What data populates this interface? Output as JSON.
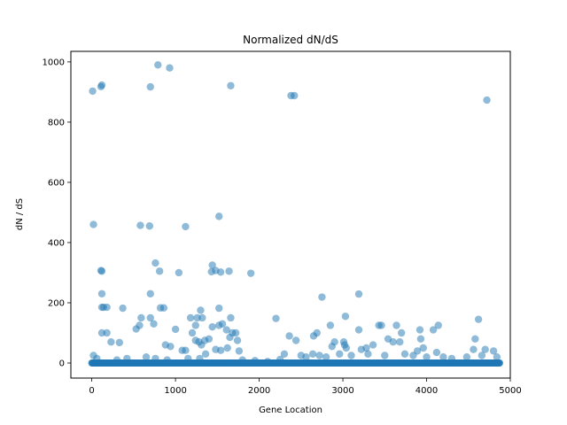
{
  "chart_data": {
    "type": "scatter",
    "title": "Normalized dN/dS",
    "xlabel": "Gene Location",
    "ylabel": "dN / dS",
    "xlim": [
      -250,
      5000
    ],
    "ylim": [
      -50,
      1035
    ],
    "xticks": [
      0,
      1000,
      2000,
      3000,
      4000,
      5000
    ],
    "yticks": [
      0,
      200,
      400,
      600,
      800,
      1000
    ],
    "grid": false,
    "marker_color": "#1f77b4",
    "marker_alpha": 0.5,
    "baseline": {
      "x_start": 0,
      "x_end": 4880,
      "y": 0,
      "note_points_at": 0
    },
    "points": [
      [
        10,
        903
      ],
      [
        20,
        460
      ],
      [
        110,
        918
      ],
      [
        120,
        923
      ],
      [
        700,
        917
      ],
      [
        790,
        990
      ],
      [
        930,
        980
      ],
      [
        1660,
        921
      ],
      [
        2380,
        888
      ],
      [
        2420,
        888
      ],
      [
        4720,
        873
      ],
      [
        580,
        457
      ],
      [
        690,
        455
      ],
      [
        1120,
        453
      ],
      [
        1520,
        487
      ],
      [
        110,
        307
      ],
      [
        120,
        305
      ],
      [
        760,
        332
      ],
      [
        810,
        305
      ],
      [
        1040,
        300
      ],
      [
        1430,
        303
      ],
      [
        1440,
        325
      ],
      [
        1480,
        307
      ],
      [
        1540,
        302
      ],
      [
        1640,
        305
      ],
      [
        1900,
        298
      ],
      [
        120,
        230
      ],
      [
        700,
        230
      ],
      [
        2750,
        219
      ],
      [
        3190,
        229
      ],
      [
        120,
        185
      ],
      [
        140,
        185
      ],
      [
        180,
        185
      ],
      [
        370,
        182
      ],
      [
        820,
        183
      ],
      [
        860,
        183
      ],
      [
        1520,
        182
      ],
      [
        530,
        113
      ],
      [
        570,
        125
      ],
      [
        590,
        150
      ],
      [
        700,
        150
      ],
      [
        740,
        130
      ],
      [
        1000,
        112
      ],
      [
        1180,
        150
      ],
      [
        1200,
        100
      ],
      [
        1240,
        125
      ],
      [
        1260,
        150
      ],
      [
        1300,
        175
      ],
      [
        1320,
        150
      ],
      [
        1440,
        120
      ],
      [
        1520,
        125
      ],
      [
        1560,
        130
      ],
      [
        1610,
        110
      ],
      [
        1660,
        150
      ],
      [
        1680,
        100
      ],
      [
        1720,
        100
      ],
      [
        1740,
        75
      ],
      [
        1650,
        85
      ],
      [
        1620,
        50
      ],
      [
        120,
        100
      ],
      [
        180,
        100
      ],
      [
        230,
        70
      ],
      [
        330,
        68
      ],
      [
        880,
        60
      ],
      [
        940,
        55
      ],
      [
        1080,
        42
      ],
      [
        1120,
        42
      ],
      [
        1240,
        75
      ],
      [
        1280,
        70
      ],
      [
        1310,
        60
      ],
      [
        1350,
        75
      ],
      [
        1400,
        80
      ],
      [
        1480,
        45
      ],
      [
        1540,
        42
      ],
      [
        1760,
        40
      ],
      [
        1290,
        15
      ],
      [
        1360,
        30
      ],
      [
        2200,
        148
      ],
      [
        2360,
        90
      ],
      [
        2440,
        75
      ],
      [
        2650,
        90
      ],
      [
        2690,
        100
      ],
      [
        2850,
        125
      ],
      [
        2870,
        55
      ],
      [
        2900,
        70
      ],
      [
        3010,
        70
      ],
      [
        3030,
        155
      ],
      [
        3020,
        60
      ],
      [
        3040,
        50
      ],
      [
        3190,
        110
      ],
      [
        3220,
        45
      ],
      [
        3280,
        50
      ],
      [
        3360,
        60
      ],
      [
        3430,
        125
      ],
      [
        3460,
        125
      ],
      [
        3540,
        80
      ],
      [
        3600,
        70
      ],
      [
        3640,
        125
      ],
      [
        3680,
        70
      ],
      [
        3700,
        100
      ],
      [
        3890,
        40
      ],
      [
        3920,
        110
      ],
      [
        3930,
        80
      ],
      [
        3960,
        50
      ],
      [
        4080,
        110
      ],
      [
        4140,
        125
      ],
      [
        4200,
        20
      ],
      [
        4560,
        45
      ],
      [
        4580,
        80
      ],
      [
        4620,
        145
      ],
      [
        4700,
        45
      ],
      [
        4800,
        40
      ],
      [
        4840,
        20
      ],
      [
        2300,
        30
      ],
      [
        2500,
        25
      ],
      [
        2560,
        20
      ],
      [
        2640,
        30
      ],
      [
        2720,
        25
      ],
      [
        2800,
        20
      ],
      [
        2960,
        30
      ],
      [
        3100,
        25
      ],
      [
        3300,
        30
      ],
      [
        3500,
        25
      ],
      [
        3740,
        30
      ],
      [
        3840,
        25
      ],
      [
        4000,
        20
      ],
      [
        4120,
        35
      ],
      [
        4300,
        15
      ],
      [
        4480,
        20
      ],
      [
        4660,
        25
      ],
      [
        20,
        25
      ],
      [
        60,
        15
      ],
      [
        300,
        10
      ],
      [
        420,
        15
      ],
      [
        650,
        20
      ],
      [
        760,
        15
      ],
      [
        900,
        10
      ],
      [
        1150,
        15
      ],
      [
        1800,
        10
      ],
      [
        1950,
        8
      ],
      [
        2100,
        5
      ],
      [
        2250,
        12
      ]
    ]
  }
}
